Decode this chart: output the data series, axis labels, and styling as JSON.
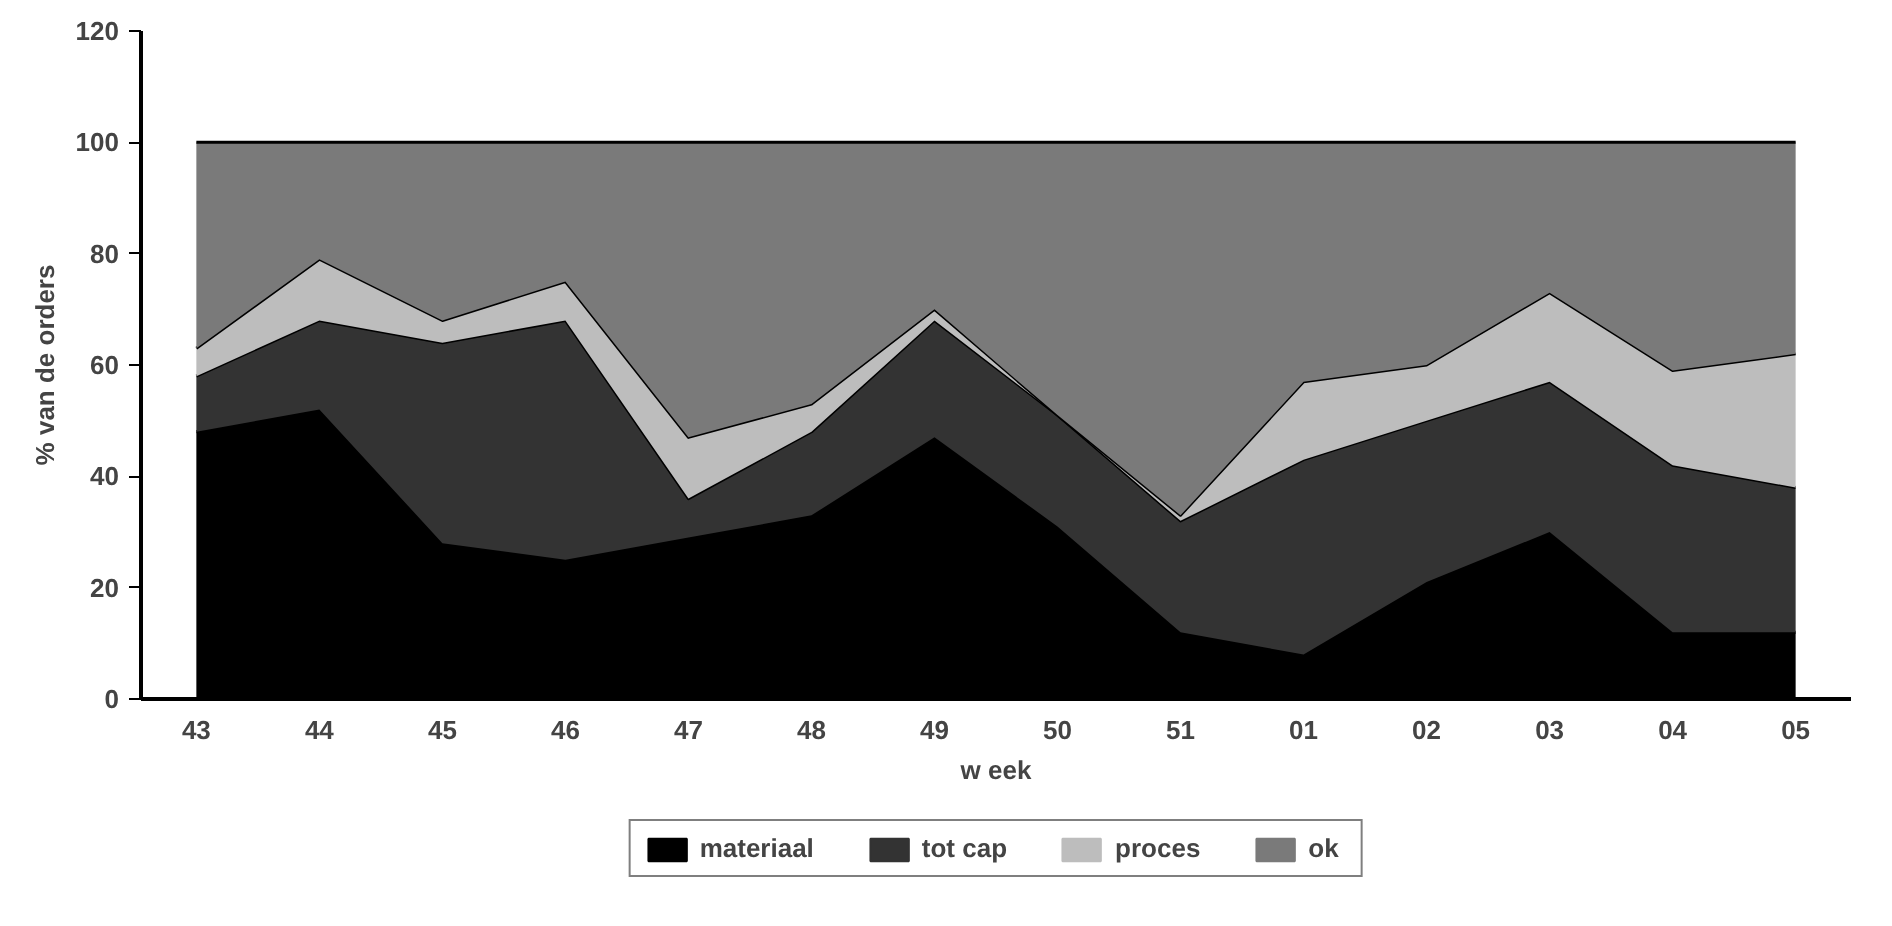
{
  "chart_data": {
    "type": "area",
    "stacked": true,
    "xlabel": "w eek",
    "ylabel": "% van de orders",
    "categories": [
      "43",
      "44",
      "45",
      "46",
      "47",
      "48",
      "49",
      "50",
      "51",
      "01",
      "02",
      "03",
      "04",
      "05"
    ],
    "series": [
      {
        "name": "materiaal",
        "color": "#000000",
        "values": [
          48,
          52,
          28,
          25,
          29,
          33,
          47,
          31,
          12,
          8,
          21,
          30,
          12,
          12
        ]
      },
      {
        "name": "tot cap",
        "color": "#333333",
        "values": [
          10,
          16,
          36,
          43,
          7,
          15,
          21,
          20,
          20,
          35,
          29,
          27,
          30,
          26
        ]
      },
      {
        "name": "proces",
        "color": "#bdbdbd",
        "values": [
          5,
          11,
          4,
          7,
          11,
          5,
          2,
          0,
          1,
          14,
          10,
          16,
          17,
          24
        ]
      },
      {
        "name": "ok",
        "color": "#7a7a7a",
        "values": [
          37,
          21,
          32,
          25,
          53,
          47,
          30,
          49,
          67,
          43,
          40,
          27,
          41,
          38
        ]
      }
    ],
    "ylim": [
      0,
      120
    ],
    "yticks": [
      0,
      20,
      40,
      60,
      80,
      100,
      120
    ],
    "grid": false,
    "legend": "bottom"
  }
}
